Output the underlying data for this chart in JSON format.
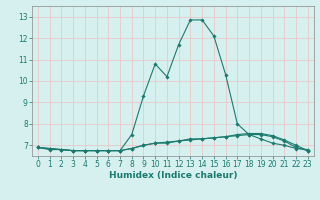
{
  "xlabel": "Humidex (Indice chaleur)",
  "ylabel": "",
  "background_color": "#d6f0f0",
  "grid_color": "#e8c8c8",
  "line_color": "#1a7a6e",
  "spine_color": "#888888",
  "xlim": [
    -0.5,
    23.5
  ],
  "ylim": [
    6.5,
    13.5
  ],
  "yticks": [
    7,
    8,
    9,
    10,
    11,
    12,
    13
  ],
  "xticks": [
    0,
    1,
    2,
    3,
    4,
    5,
    6,
    7,
    8,
    9,
    10,
    11,
    12,
    13,
    14,
    15,
    16,
    17,
    18,
    19,
    20,
    21,
    22,
    23
  ],
  "series": [
    {
      "x": [
        0,
        1,
        2,
        3,
        4,
        5,
        6,
        7,
        8,
        9,
        10,
        11,
        12,
        13,
        14,
        15,
        16,
        17,
        18,
        19,
        20,
        21,
        22,
        23
      ],
      "y": [
        6.9,
        6.8,
        6.8,
        6.75,
        6.75,
        6.75,
        6.75,
        6.75,
        7.5,
        9.3,
        10.8,
        10.2,
        11.7,
        12.85,
        12.85,
        12.1,
        10.3,
        8.0,
        7.5,
        7.3,
        7.1,
        7.0,
        6.85,
        6.8
      ]
    },
    {
      "x": [
        0,
        1,
        2,
        3,
        4,
        5,
        6,
        7,
        8,
        9,
        10,
        11,
        12,
        13,
        14,
        15,
        16,
        17,
        18,
        19,
        20,
        21,
        22,
        23
      ],
      "y": [
        6.9,
        6.85,
        6.8,
        6.75,
        6.75,
        6.75,
        6.75,
        6.75,
        6.85,
        7.0,
        7.1,
        7.15,
        7.2,
        7.25,
        7.3,
        7.35,
        7.4,
        7.45,
        7.5,
        7.5,
        7.4,
        7.2,
        6.9,
        6.75
      ]
    },
    {
      "x": [
        0,
        1,
        2,
        3,
        4,
        5,
        6,
        7,
        8,
        9,
        10,
        11,
        12,
        13,
        14,
        15,
        16,
        17,
        18,
        19,
        20,
        21,
        22,
        23
      ],
      "y": [
        6.9,
        6.85,
        6.8,
        6.75,
        6.75,
        6.75,
        6.75,
        6.75,
        6.85,
        7.0,
        7.1,
        7.1,
        7.2,
        7.3,
        7.3,
        7.35,
        7.4,
        7.5,
        7.55,
        7.55,
        7.45,
        7.25,
        7.0,
        6.75
      ]
    }
  ],
  "tick_fontsize": 5.5,
  "xlabel_fontsize": 6.5,
  "marker_size": 1.8,
  "linewidth": 0.8
}
